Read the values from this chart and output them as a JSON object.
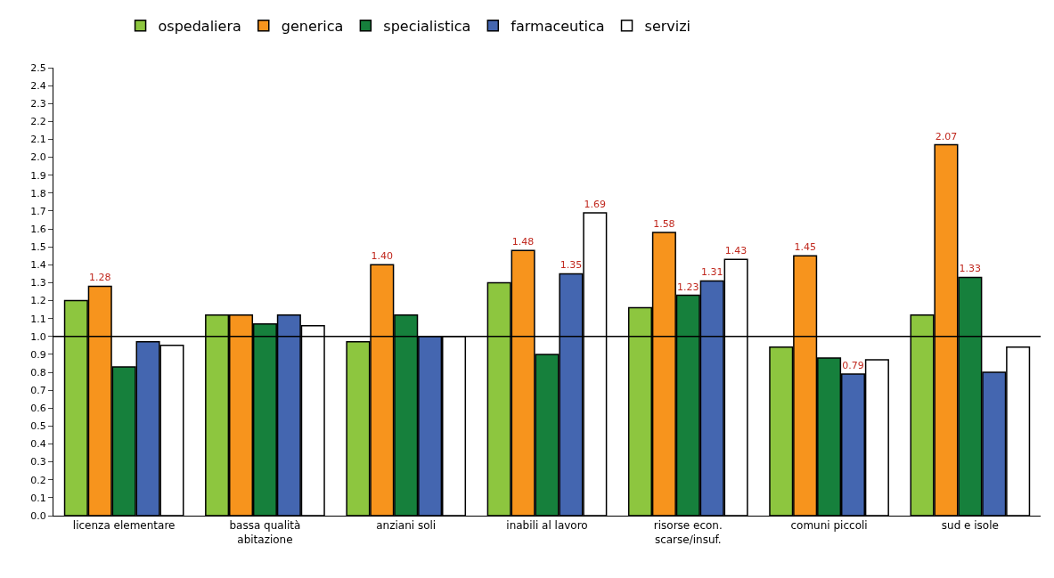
{
  "chart_data": {
    "type": "bar",
    "categories": [
      "licenza elementare",
      "bassa qualità\nabitazione",
      "anziani soli",
      "inabili al lavoro",
      "risorse econ.\nscarse/insuf.",
      "comuni piccoli",
      "sud e isole"
    ],
    "series": [
      {
        "name": "ospedaliera",
        "color": "#8dc63f",
        "values": [
          1.2,
          1.12,
          0.97,
          1.3,
          1.16,
          0.94,
          1.12
        ]
      },
      {
        "name": "generica",
        "color": "#f7941d",
        "values": [
          1.28,
          1.12,
          1.4,
          1.48,
          1.58,
          1.45,
          2.07
        ],
        "value_labels": [
          "1.28",
          null,
          "1.40",
          "1.48",
          "1.58",
          "1.45",
          "2.07"
        ]
      },
      {
        "name": "specialistica",
        "color": "#16803c",
        "values": [
          0.83,
          1.07,
          1.12,
          0.9,
          1.23,
          0.88,
          1.33
        ],
        "value_labels": [
          null,
          null,
          null,
          null,
          "1.23",
          null,
          "1.33"
        ]
      },
      {
        "name": "farmaceutica",
        "color": "#4466b0",
        "values": [
          0.97,
          1.12,
          1.0,
          1.35,
          1.31,
          0.79,
          0.8
        ],
        "value_labels": [
          null,
          null,
          null,
          "1.35",
          "1.31",
          "0.79",
          null
        ]
      },
      {
        "name": "servizi",
        "color": "#ffffff",
        "values": [
          0.95,
          1.06,
          1.0,
          1.69,
          1.43,
          0.87,
          0.94
        ],
        "value_labels": [
          null,
          null,
          null,
          "1.69",
          "1.43",
          null,
          null
        ]
      }
    ],
    "ylim": [
      0,
      2.5
    ],
    "yticks": [
      {
        "value": 0,
        "label": "0.0"
      },
      0.1,
      0.2,
      0.3,
      0.4,
      0.5,
      0.6,
      0.7,
      0.8,
      0.9,
      {
        "value": 1,
        "label": "1.0"
      },
      1.1,
      1.2,
      1.3,
      1.4,
      1.5,
      1.6,
      1.7,
      1.8,
      1.9,
      {
        "value": 2,
        "label": "2.0"
      },
      2.1,
      2.2,
      2.3,
      2.4,
      2.5
    ],
    "ref_lines": [
      {
        "axis": "y",
        "value": 1.0,
        "color": "#000000"
      }
    ],
    "legend": "top"
  }
}
